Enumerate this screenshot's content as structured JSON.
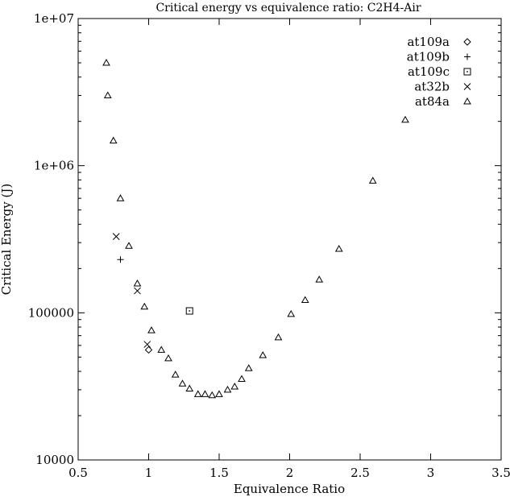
{
  "chart_data": {
    "type": "scatter",
    "title": "Critical energy vs equivalence ratio: C2H4-Air",
    "xlabel": "Equivalence Ratio",
    "ylabel": "Critical Energy (J)",
    "xlim": [
      0.5,
      3.5
    ],
    "ylim": [
      10000,
      10000000
    ],
    "yscale": "log",
    "grid": false,
    "legend_position": "top-right",
    "x_ticks": [
      {
        "value": 0.5,
        "label": "0.5"
      },
      {
        "value": 1,
        "label": "1"
      },
      {
        "value": 1.5,
        "label": "1.5"
      },
      {
        "value": 2,
        "label": "2"
      },
      {
        "value": 2.5,
        "label": "2.5"
      },
      {
        "value": 3,
        "label": "3"
      },
      {
        "value": 3.5,
        "label": "3.5"
      }
    ],
    "y_ticks": [
      {
        "value": 10000,
        "label": "10000"
      },
      {
        "value": 100000,
        "label": "100000"
      },
      {
        "value": 1000000,
        "label": "1e+06"
      },
      {
        "value": 10000000,
        "label": "1e+07"
      }
    ],
    "series": [
      {
        "name": "at109a",
        "marker": "diamond",
        "x": [
          1.0
        ],
        "y": [
          56000
        ]
      },
      {
        "name": "at109b",
        "marker": "plus",
        "x": [
          0.8
        ],
        "y": [
          230000
        ]
      },
      {
        "name": "at109c",
        "marker": "square-dot",
        "x": [
          1.29
        ],
        "y": [
          103000
        ]
      },
      {
        "name": "at32b",
        "marker": "cross",
        "x": [
          0.77,
          0.92,
          0.99
        ],
        "y": [
          330000,
          141000,
          61000
        ]
      },
      {
        "name": "at84a",
        "marker": "triangle",
        "x": [
          0.7,
          0.71,
          0.75,
          0.8,
          0.86,
          0.92,
          0.97,
          1.02,
          1.09,
          1.14,
          1.19,
          1.24,
          1.29,
          1.35,
          1.4,
          1.45,
          1.5,
          1.56,
          1.61,
          1.66,
          1.71,
          1.81,
          1.92,
          2.01,
          2.11,
          2.21,
          2.35,
          2.59,
          2.82
        ],
        "y": [
          5000000,
          3000000,
          1480000,
          600000,
          285000,
          158000,
          110000,
          76000,
          56000,
          49000,
          38000,
          33000,
          30500,
          28000,
          28000,
          27500,
          28000,
          30000,
          31500,
          35500,
          42000,
          51500,
          68000,
          98000,
          122000,
          168000,
          272000,
          790000,
          2050000
        ]
      }
    ]
  }
}
